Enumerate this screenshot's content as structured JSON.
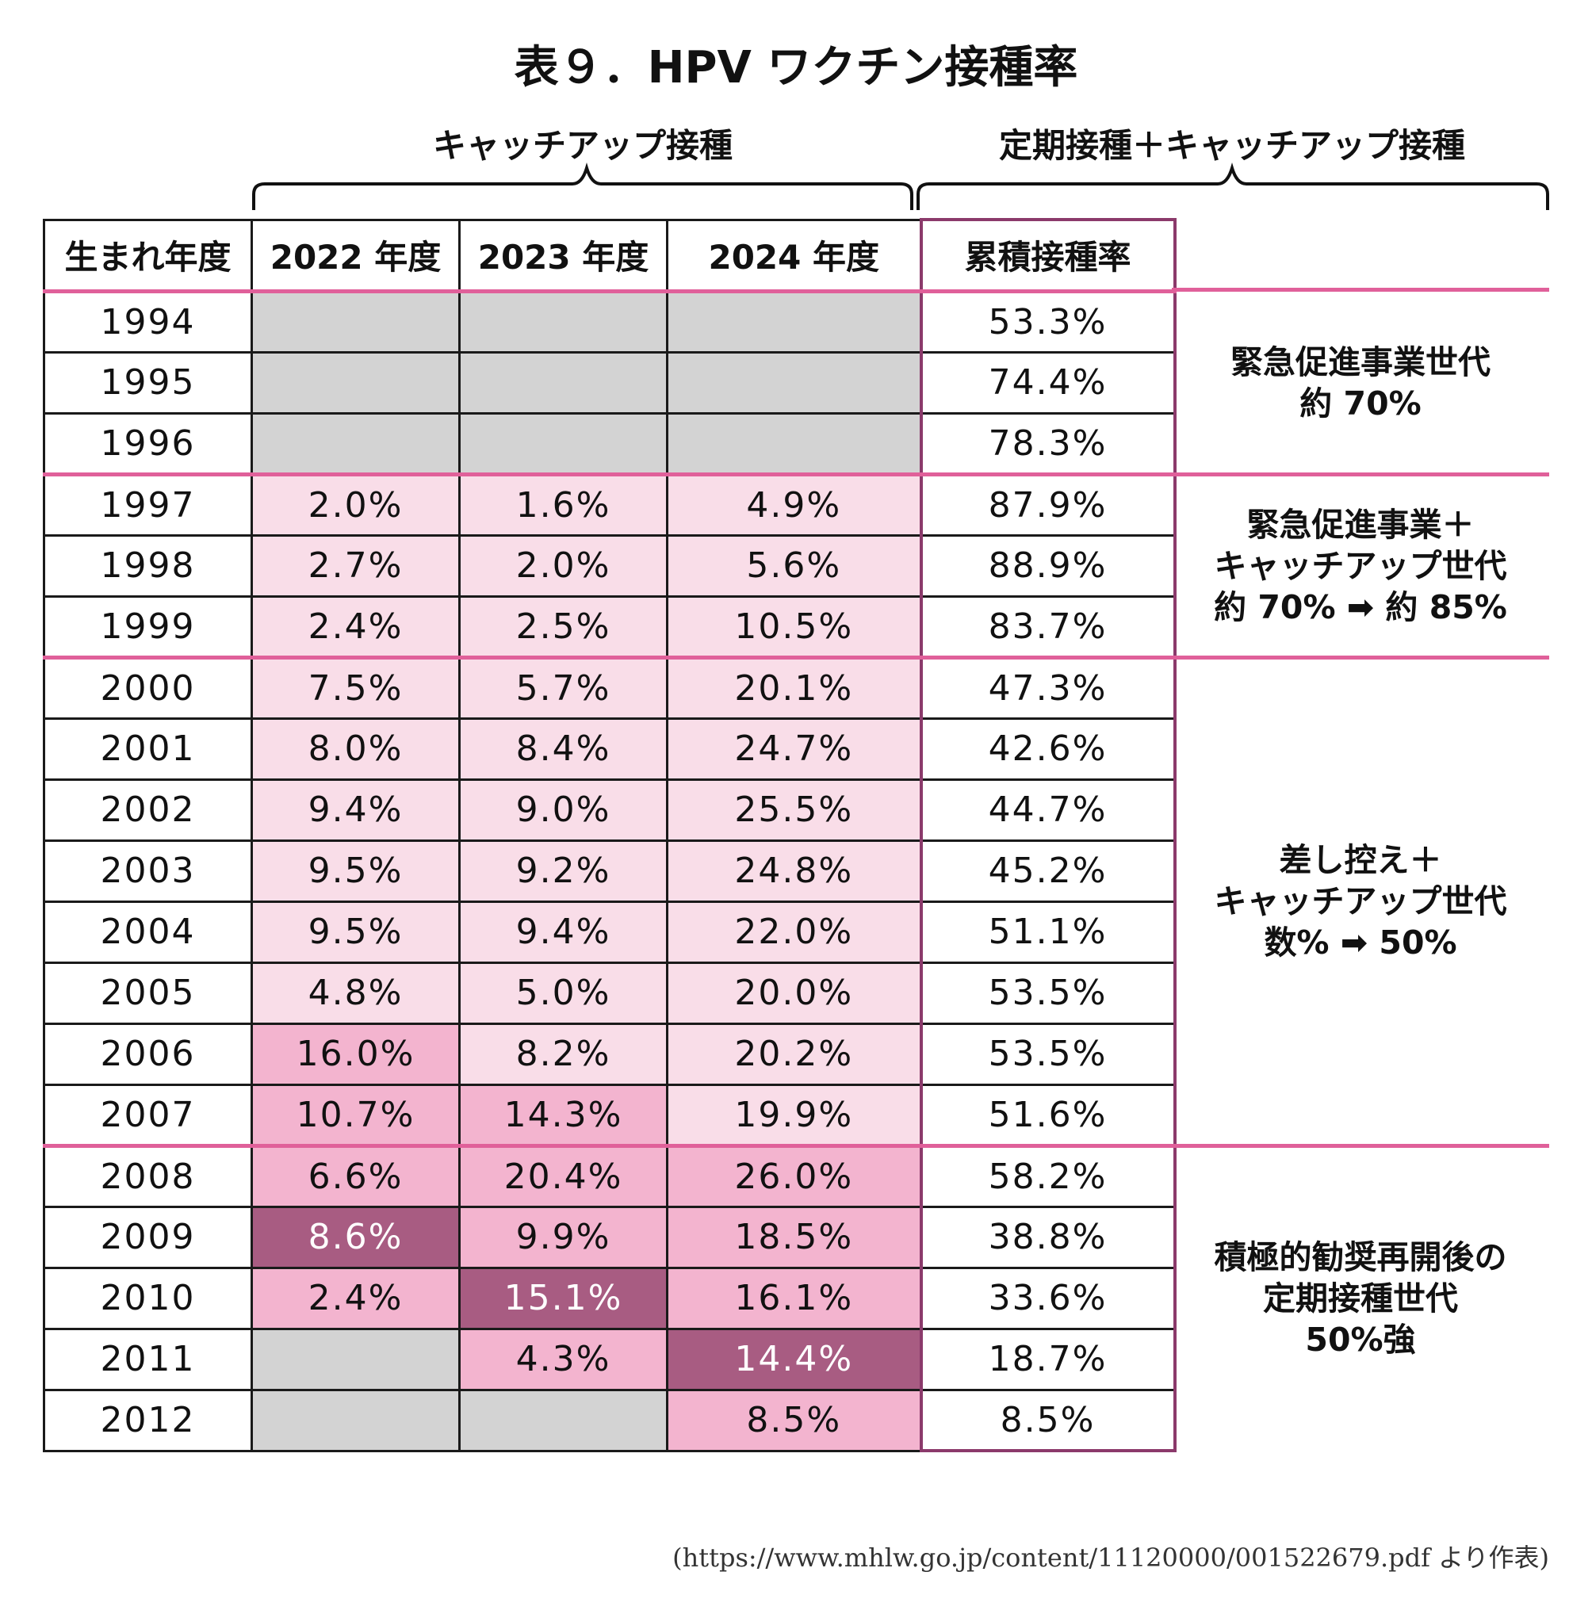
{
  "title": "表９．HPV ワクチン接種率",
  "group_labels": {
    "catchup": "キャッチアップ接種",
    "cumulative": "定期接種＋キャッチアップ接種"
  },
  "source": "(https://www.mhlw.go.jp/content/11120000/001522679.pdf より作表)",
  "chart_data": {
    "type": "table",
    "title": "表９．HPV ワクチン接種率",
    "columns": [
      "生まれ年度",
      "2022 年度",
      "2023 年度",
      "2024 年度",
      "累積接種率"
    ],
    "rows": [
      {
        "year": "1994",
        "y2022": "",
        "y2023": "",
        "y2024": "",
        "cumulative": "53.3%",
        "shade": [
          "na",
          "na",
          "na"
        ]
      },
      {
        "year": "1995",
        "y2022": "",
        "y2023": "",
        "y2024": "",
        "cumulative": "74.4%",
        "shade": [
          "na",
          "na",
          "na"
        ]
      },
      {
        "year": "1996",
        "y2022": "",
        "y2023": "",
        "y2024": "",
        "cumulative": "78.3%",
        "shade": [
          "na",
          "na",
          "na"
        ]
      },
      {
        "year": "1997",
        "y2022": "2.0%",
        "y2023": "1.6%",
        "y2024": "4.9%",
        "cumulative": "87.9%",
        "shade": [
          "l1",
          "l1",
          "l1"
        ]
      },
      {
        "year": "1998",
        "y2022": "2.7%",
        "y2023": "2.0%",
        "y2024": "5.6%",
        "cumulative": "88.9%",
        "shade": [
          "l1",
          "l1",
          "l1"
        ]
      },
      {
        "year": "1999",
        "y2022": "2.4%",
        "y2023": "2.5%",
        "y2024": "10.5%",
        "cumulative": "83.7%",
        "shade": [
          "l1",
          "l1",
          "l1"
        ]
      },
      {
        "year": "2000",
        "y2022": "7.5%",
        "y2023": "5.7%",
        "y2024": "20.1%",
        "cumulative": "47.3%",
        "shade": [
          "l1",
          "l1",
          "l1"
        ]
      },
      {
        "year": "2001",
        "y2022": "8.0%",
        "y2023": "8.4%",
        "y2024": "24.7%",
        "cumulative": "42.6%",
        "shade": [
          "l1",
          "l1",
          "l1"
        ]
      },
      {
        "year": "2002",
        "y2022": "9.4%",
        "y2023": "9.0%",
        "y2024": "25.5%",
        "cumulative": "44.7%",
        "shade": [
          "l1",
          "l1",
          "l1"
        ]
      },
      {
        "year": "2003",
        "y2022": "9.5%",
        "y2023": "9.2%",
        "y2024": "24.8%",
        "cumulative": "45.2%",
        "shade": [
          "l1",
          "l1",
          "l1"
        ]
      },
      {
        "year": "2004",
        "y2022": "9.5%",
        "y2023": "9.4%",
        "y2024": "22.0%",
        "cumulative": "51.1%",
        "shade": [
          "l1",
          "l1",
          "l1"
        ]
      },
      {
        "year": "2005",
        "y2022": "4.8%",
        "y2023": "5.0%",
        "y2024": "20.0%",
        "cumulative": "53.5%",
        "shade": [
          "l1",
          "l1",
          "l1"
        ]
      },
      {
        "year": "2006",
        "y2022": "16.0%",
        "y2023": "8.2%",
        "y2024": "20.2%",
        "cumulative": "53.5%",
        "shade": [
          "l2",
          "l1",
          "l1"
        ]
      },
      {
        "year": "2007",
        "y2022": "10.7%",
        "y2023": "14.3%",
        "y2024": "19.9%",
        "cumulative": "51.6%",
        "shade": [
          "l2",
          "l2",
          "l1"
        ]
      },
      {
        "year": "2008",
        "y2022": "6.6%",
        "y2023": "20.4%",
        "y2024": "26.0%",
        "cumulative": "58.2%",
        "shade": [
          "l2",
          "l2",
          "l2"
        ]
      },
      {
        "year": "2009",
        "y2022": "8.6%",
        "y2023": "9.9%",
        "y2024": "18.5%",
        "cumulative": "38.8%",
        "shade": [
          "l3",
          "l2",
          "l2"
        ]
      },
      {
        "year": "2010",
        "y2022": "2.4%",
        "y2023": "15.1%",
        "y2024": "16.1%",
        "cumulative": "33.6%",
        "shade": [
          "l2",
          "l3",
          "l2"
        ]
      },
      {
        "year": "2011",
        "y2022": "",
        "y2023": "4.3%",
        "y2024": "14.4%",
        "cumulative": "18.7%",
        "shade": [
          "na",
          "l2",
          "l3"
        ]
      },
      {
        "year": "2012",
        "y2022": "",
        "y2023": "",
        "y2024": "8.5%",
        "cumulative": "8.5%",
        "shade": [
          "na",
          "na",
          "l2"
        ]
      }
    ],
    "groups": [
      {
        "lines": [
          "緊急促進事業世代",
          "約 70%"
        ],
        "start": 0,
        "end": 2
      },
      {
        "lines": [
          "緊急促進事業＋",
          "キャッチアップ世代",
          "約 70% ➡ 約 85%"
        ],
        "start": 3,
        "end": 5
      },
      {
        "lines": [
          "差し控え＋",
          "キャッチアップ世代",
          "数% ➡ 50%"
        ],
        "start": 6,
        "end": 13
      },
      {
        "lines": [
          "積極的勧奨再開後の",
          "定期接種世代",
          "50%強"
        ],
        "start": 14,
        "end": 18
      }
    ]
  },
  "colors": {
    "not_applicable": "#d3d3d3",
    "light_pink": "#f9dde8",
    "mid_pink": "#f3b4cf",
    "dark_mauve": "#a85c82",
    "group_line": "#e0609a",
    "cumulative_border": "#8b3a6b"
  }
}
